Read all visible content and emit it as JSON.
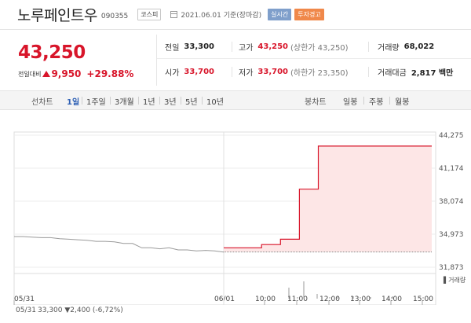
{
  "header": {
    "name": "노루페인트우",
    "code": "090355",
    "market": "코스피",
    "date": "2021.06.01 기준(장마감)",
    "live_label": "실시간",
    "warn_label": "투자경고"
  },
  "price": {
    "current": "43,250",
    "change_label": "전일대비",
    "change": "9,950",
    "change_pct": "+29.88%"
  },
  "stats": {
    "prev_close_label": "전일",
    "prev_close": "33,300",
    "high_label": "고가",
    "high": "43,250",
    "upper_limit": "(상한가 43,250)",
    "volume_label": "거래량",
    "volume": "68,022",
    "open_label": "시가",
    "open": "33,700",
    "low_label": "저가",
    "low": "33,700",
    "lower_limit": "(하한가 23,350)",
    "amount_label": "거래대금",
    "amount": "2,817 백만"
  },
  "tabs": {
    "line_label": "선차트",
    "line_items": [
      "1일",
      "1주일",
      "3개월",
      "1년",
      "3년",
      "5년",
      "10년"
    ],
    "active": "1일",
    "candle_label": "봉차트",
    "candle_items": [
      "일봉",
      "주봉",
      "월봉"
    ]
  },
  "footer": {
    "prev_date": "05/31",
    "prev_info": "33,300 ▼2,400 (-6,72%)"
  },
  "colors": {
    "up": "#d8152a",
    "fill": "#fde6e6",
    "prev_line": "#9a9a9a"
  },
  "chart_data": {
    "type": "line",
    "y_ticks": [
      "44,275",
      "41,174",
      "38,074",
      "34,973",
      "31,873"
    ],
    "y_tick_values": [
      44275,
      41174,
      38074,
      34973,
      31873
    ],
    "ylim": [
      31873,
      44275
    ],
    "volume_label": "거래량",
    "x_ticks": [
      "05/31",
      "06/01",
      "10:00",
      "11:00",
      "12:00",
      "13:00",
      "14:00",
      "15:00"
    ],
    "reference": 33300,
    "series": [
      {
        "values": [
          34750,
          34750,
          34700,
          34650,
          34650,
          34550,
          34500,
          34450,
          34400,
          34300,
          34300,
          34250,
          34100,
          34100,
          33700,
          33700,
          33600,
          33700,
          33500,
          33500,
          33400,
          33450,
          33400,
          33300
        ]
      },
      {
        "values": [
          33700,
          33700,
          33700,
          33700,
          34000,
          34000,
          34500,
          34500,
          39200,
          39200,
          43250,
          43250,
          43250,
          43250,
          43250,
          43250,
          43250,
          43250,
          43250,
          43250,
          43250,
          43250,
          43250
        ]
      }
    ]
  }
}
